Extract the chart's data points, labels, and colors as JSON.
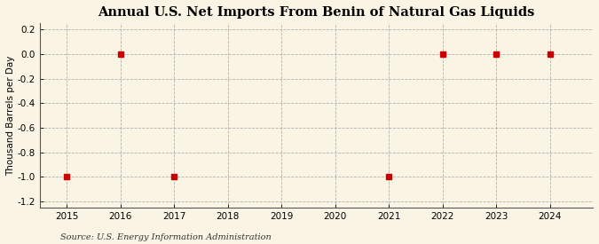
{
  "title": "Annual U.S. Net Imports From Benin of Natural Gas Liquids",
  "ylabel": "Thousand Barrels per Day",
  "source": "Source: U.S. Energy Information Administration",
  "xlim": [
    2014.5,
    2024.8
  ],
  "ylim": [
    -1.25,
    0.25
  ],
  "yticks": [
    -1.2,
    -1.0,
    -0.8,
    -0.6,
    -0.4,
    -0.2,
    0.0,
    0.2
  ],
  "ytick_labels": [
    "-1.2",
    "-1.0",
    "-0.8",
    "-0.6",
    "-0.4",
    "-0.2",
    "0.0",
    "0.2"
  ],
  "xticks": [
    2015,
    2016,
    2017,
    2018,
    2019,
    2020,
    2021,
    2022,
    2023,
    2024
  ],
  "data_x": [
    2015,
    2016,
    2017,
    2021,
    2022,
    2023,
    2024
  ],
  "data_y": [
    -1.0,
    0.0,
    -1.0,
    -1.0,
    0.0,
    0.0,
    0.0
  ],
  "marker_color": "#cc0000",
  "marker_size": 4,
  "background_color": "#faf4e4",
  "grid_color": "#aaaaaa",
  "title_fontsize": 10.5,
  "axis_label_fontsize": 7.5,
  "source_fontsize": 7,
  "tick_fontsize": 7.5
}
